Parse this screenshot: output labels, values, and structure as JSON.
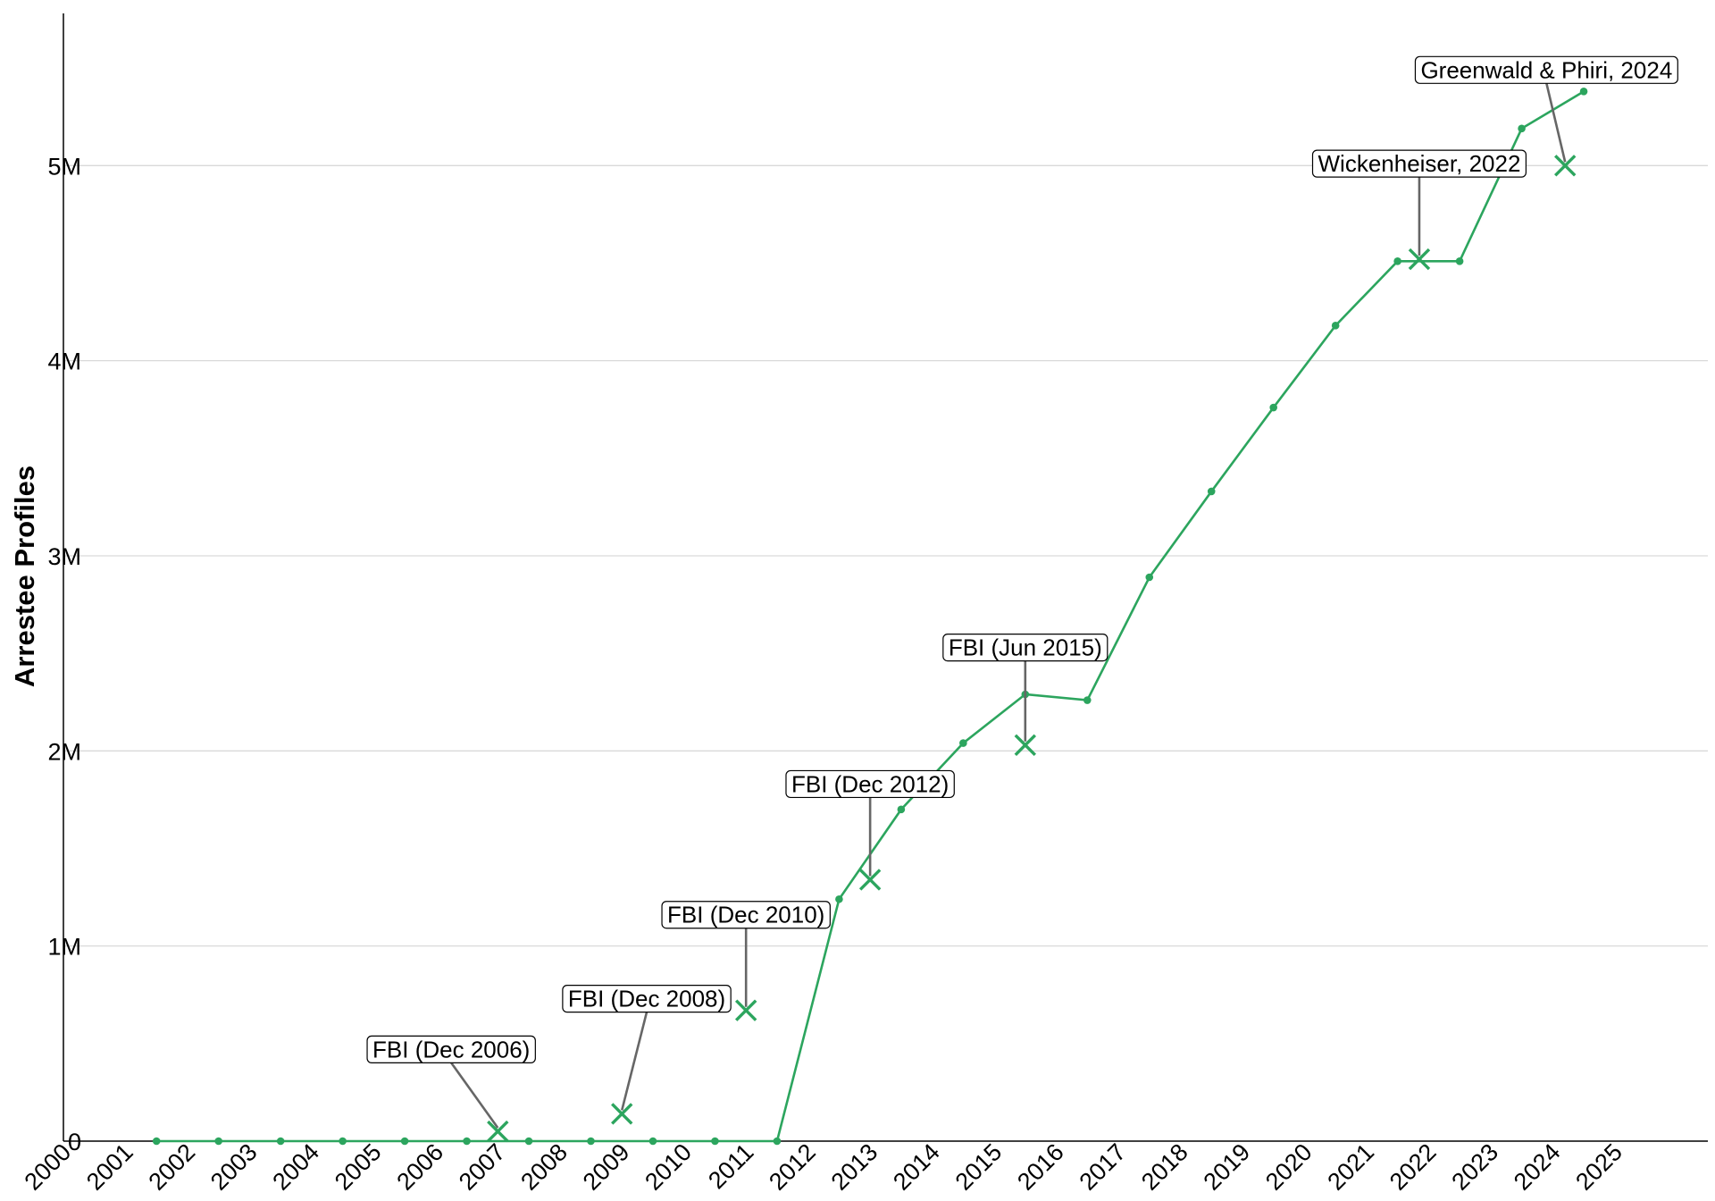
{
  "chart_data": {
    "type": "line",
    "ylabel": "Arrestee Profiles",
    "xlabel": "",
    "xlim": [
      2000,
      2026.5
    ],
    "ylim": [
      0,
      5.78
    ],
    "x_ticks": [
      2000,
      2001,
      2002,
      2003,
      2004,
      2005,
      2006,
      2007,
      2008,
      2009,
      2010,
      2011,
      2012,
      2013,
      2014,
      2015,
      2016,
      2017,
      2018,
      2019,
      2020,
      2021,
      2022,
      2023,
      2024,
      2025
    ],
    "x_tick_labels": [
      "2000",
      "2001",
      "2002",
      "2003",
      "2004",
      "2005",
      "2006",
      "2007",
      "2008",
      "2009",
      "2010",
      "2011",
      "2012",
      "2013",
      "2014",
      "2015",
      "2016",
      "2017",
      "2018",
      "2019",
      "2020",
      "2021",
      "2022",
      "2023",
      "2024",
      "2025"
    ],
    "y_ticks": [
      0,
      1,
      2,
      3,
      4,
      5
    ],
    "y_tick_labels": [
      "0",
      "1M",
      "2M",
      "3M",
      "4M",
      "5M"
    ],
    "y_unit": "millions",
    "grid": "horizontal",
    "color": "#2ca55e",
    "series": [
      {
        "x": [
          2001.5,
          2002.5,
          2003.5,
          2004.5,
          2005.5,
          2006.5,
          2007.5,
          2008.5,
          2009.5,
          2010.5,
          2011.5,
          2012.5,
          2013.5,
          2014.5,
          2015.5,
          2016.5,
          2017.5,
          2018.5,
          2019.5,
          2020.5,
          2021.5,
          2022.5,
          2023.5,
          2024.5
        ],
        "values": [
          0,
          0,
          0,
          0,
          0,
          0,
          0,
          0,
          0,
          0,
          0,
          1.24,
          1.7,
          2.04,
          2.29,
          2.26,
          2.89,
          3.33,
          3.76,
          4.18,
          4.51,
          4.51,
          5.19,
          5.38
        ]
      }
    ],
    "annotations": [
      {
        "label": "FBI (Dec 2006)",
        "x": 2007.0,
        "y": 0.05,
        "label_x": 2006.25,
        "label_y": 0.47
      },
      {
        "label": "FBI (Dec 2008)",
        "x": 2009.0,
        "y": 0.14,
        "label_x": 2009.4,
        "label_y": 0.73
      },
      {
        "label": "FBI (Dec 2010)",
        "x": 2011.0,
        "y": 0.67,
        "label_x": 2011.0,
        "label_y": 1.16
      },
      {
        "label": "FBI (Dec 2012)",
        "x": 2013.0,
        "y": 1.34,
        "label_x": 2013.0,
        "label_y": 1.83
      },
      {
        "label": "FBI (Jun 2015)",
        "x": 2015.5,
        "y": 2.03,
        "label_x": 2015.5,
        "label_y": 2.53
      },
      {
        "label": "Wickenheiser, 2022",
        "x": 2021.85,
        "y": 4.52,
        "label_x": 2021.85,
        "label_y": 5.01
      },
      {
        "label": "Greenwald & Phiri, 2024",
        "x": 2024.2,
        "y": 5.0,
        "label_x": 2023.9,
        "label_y": 5.49
      }
    ]
  }
}
